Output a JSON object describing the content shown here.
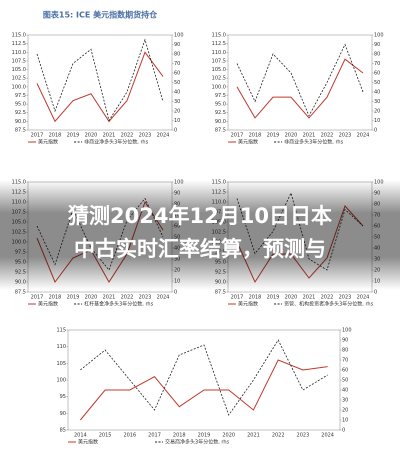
{
  "chart_data": [
    {
      "type": "line",
      "title": "图表15: ICE 美元指数期货持仓",
      "categories": [
        "2017",
        "2018",
        "2019",
        "2020",
        "2021",
        "2022",
        "2023",
        "2024"
      ],
      "series": [
        {
          "name": "美元指数",
          "color": "#c0392b",
          "values": [
            101,
            90,
            96,
            98,
            90,
            96,
            110,
            103
          ]
        },
        {
          "name": "非商业净多头3年分位数, rhs",
          "color": "#222222",
          "axis": "y2",
          "values": [
            80,
            20,
            70,
            85,
            10,
            40,
            95,
            30
          ]
        }
      ],
      "ylim": [
        87.5,
        115
      ],
      "yticks": [
        {
          "value": 87.5,
          "label": "87.5"
        },
        {
          "value": 90,
          "label": "90.0"
        },
        {
          "value": 92.5,
          "label": "92.5"
        },
        {
          "value": 95,
          "label": "95.0"
        },
        {
          "value": 97.5,
          "label": "97.5"
        },
        {
          "value": 100,
          "label": "100.0"
        },
        {
          "value": 102.5,
          "label": "102.5"
        },
        {
          "value": 105,
          "label": "105.0"
        },
        {
          "value": 107.5,
          "label": "107.5"
        },
        {
          "value": 110,
          "label": "110.0"
        },
        {
          "value": 112.5,
          "label": "112.5"
        },
        {
          "value": 115,
          "label": "115.0"
        }
      ],
      "y2lim": [
        0,
        100
      ],
      "y2ticks": [
        0,
        10,
        20,
        30,
        40,
        50,
        60,
        70,
        80,
        90,
        100
      ]
    },
    {
      "type": "line",
      "categories": [
        "2017",
        "2018",
        "2019",
        "2020",
        "2021",
        "2022",
        "2023",
        "2024"
      ],
      "series": [
        {
          "name": "美元指数",
          "color": "#c0392b",
          "values": [
            100,
            91,
            97,
            97,
            91,
            97,
            108,
            104
          ]
        },
        {
          "name": "非商业多头3年分位数, rhs",
          "color": "#222222",
          "axis": "y2",
          "values": [
            70,
            30,
            80,
            60,
            15,
            50,
            90,
            40
          ]
        }
      ],
      "ylim": [
        87.5,
        115
      ],
      "yticks": [
        {
          "value": 87.5,
          "label": "87.5"
        },
        {
          "value": 90,
          "label": "90.0"
        },
        {
          "value": 92.5,
          "label": "92.5"
        },
        {
          "value": 95,
          "label": "95.0"
        },
        {
          "value": 97.5,
          "label": "97.5"
        },
        {
          "value": 100,
          "label": "100.0"
        },
        {
          "value": 102.5,
          "label": "102.5"
        },
        {
          "value": 105,
          "label": "105.0"
        },
        {
          "value": 107.5,
          "label": "107.5"
        },
        {
          "value": 110,
          "label": "110.0"
        },
        {
          "value": 112.5,
          "label": "112.5"
        },
        {
          "value": 115,
          "label": "115.0"
        }
      ],
      "y2lim": [
        0,
        100
      ],
      "y2ticks": [
        0,
        10,
        20,
        30,
        40,
        50,
        60,
        70,
        80,
        90,
        100
      ]
    },
    {
      "type": "line",
      "categories": [
        "2017",
        "2018",
        "2019",
        "2020",
        "2021",
        "2022",
        "2023",
        "2024"
      ],
      "series": [
        {
          "name": "美元指数",
          "color": "#c0392b",
          "values": [
            101,
            90,
            96,
            98,
            90,
            97,
            110,
            103
          ]
        },
        {
          "name": "杠杆基金净多头3年分位数, rhs",
          "color": "#222222",
          "axis": "y2",
          "values": [
            60,
            25,
            75,
            40,
            20,
            65,
            85,
            50
          ]
        }
      ],
      "ylim": [
        87.5,
        115
      ],
      "yticks": [
        {
          "value": 87.5,
          "label": "87.5"
        },
        {
          "value": 90,
          "label": "90.0"
        },
        {
          "value": 92.5,
          "label": "92.5"
        },
        {
          "value": 95,
          "label": "95.0"
        },
        {
          "value": 97.5,
          "label": "97.5"
        },
        {
          "value": 100,
          "label": "100.0"
        },
        {
          "value": 102.5,
          "label": "102.5"
        },
        {
          "value": 105,
          "label": "105.0"
        },
        {
          "value": 107.5,
          "label": "107.5"
        },
        {
          "value": 110,
          "label": "110.0"
        },
        {
          "value": 112.5,
          "label": "112.5"
        },
        {
          "value": 115,
          "label": "115.0"
        }
      ],
      "y2lim": [
        0,
        100
      ],
      "y2ticks": [
        0,
        10,
        20,
        30,
        40,
        50,
        60,
        70,
        80,
        90,
        100
      ]
    },
    {
      "type": "line",
      "categories": [
        "2017",
        "2018",
        "2019",
        "2020",
        "2021",
        "2022",
        "2023",
        "2024"
      ],
      "series": [
        {
          "name": "美元指数",
          "color": "#c0392b",
          "values": [
            100,
            90,
            97,
            97,
            91,
            96,
            109,
            104
          ]
        },
        {
          "name": "资管、机构投资者净多头3年分位数, rhs",
          "color": "#222222",
          "axis": "y2",
          "values": [
            85,
            35,
            55,
            90,
            30,
            20,
            75,
            60
          ]
        }
      ],
      "ylim": [
        87.5,
        115
      ],
      "yticks": [
        {
          "value": 87.5,
          "label": "87.5"
        },
        {
          "value": 90,
          "label": "90.0"
        },
        {
          "value": 92.5,
          "label": "92.5"
        },
        {
          "value": 95,
          "label": "95.0"
        },
        {
          "value": 97.5,
          "label": "97.5"
        },
        {
          "value": 100,
          "label": "100.0"
        },
        {
          "value": 102.5,
          "label": "102.5"
        },
        {
          "value": 105,
          "label": "105.0"
        },
        {
          "value": 107.5,
          "label": "107.5"
        },
        {
          "value": 110,
          "label": "110.0"
        },
        {
          "value": 112.5,
          "label": "112.5"
        },
        {
          "value": 115,
          "label": "115.0"
        }
      ],
      "y2lim": [
        0,
        100
      ],
      "y2ticks": [
        0,
        10,
        20,
        30,
        40,
        50,
        60,
        70,
        80,
        90,
        100
      ]
    },
    {
      "type": "line",
      "categories": [
        "2014",
        "2015",
        "2016",
        "2017",
        "2018",
        "2019",
        "2020",
        "2021",
        "2022",
        "2023",
        "2024"
      ],
      "series": [
        {
          "name": "美元指数",
          "color": "#c0392b",
          "values": [
            88,
            97,
            97,
            101,
            92,
            97,
            97,
            91,
            106,
            103,
            104
          ]
        },
        {
          "name": "交易商净多头3年分位数, rhs",
          "color": "#222222",
          "axis": "y2",
          "values": [
            60,
            80,
            50,
            20,
            75,
            85,
            15,
            50,
            90,
            40,
            55
          ]
        }
      ],
      "ylim": [
        85,
        115
      ],
      "yticks": [
        85,
        90,
        95,
        100,
        105,
        110,
        115
      ],
      "y2lim": [
        0,
        100
      ],
      "y2ticks": [
        0,
        10,
        20,
        30,
        40,
        50,
        60,
        70,
        80,
        90,
        100
      ]
    }
  ],
  "headline": {
    "lines": [
      "猜测2024年12月10日日本",
      "中古实时汇率结算，预测与"
    ]
  }
}
